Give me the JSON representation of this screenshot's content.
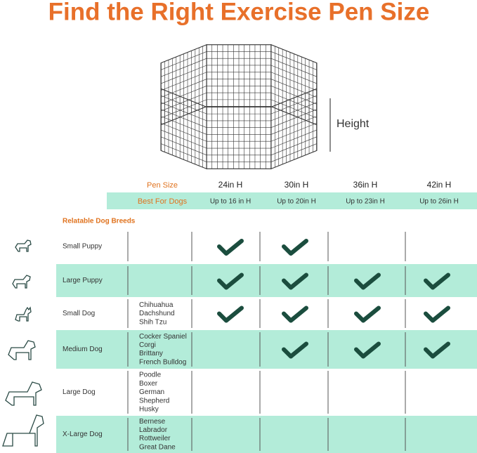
{
  "title": "Find the Right Exercise Pen Size",
  "image_label": "Height",
  "table": {
    "header": {
      "label": "Pen Size",
      "columns": [
        "24in H",
        "30in H",
        "36in H",
        "42in H"
      ]
    },
    "best_for": {
      "label": "Best For Dogs",
      "values": [
        "Up to 16 in H",
        "Up to 20in H",
        "Up to 23in H",
        "Up to 26in H"
      ]
    },
    "section_label": "Relatable Dog Breeds",
    "rows": [
      {
        "size": "Small Puppy",
        "breeds": [],
        "fits": [
          true,
          true,
          false,
          false
        ]
      },
      {
        "size": "Large Puppy",
        "breeds": [],
        "fits": [
          true,
          true,
          true,
          true
        ]
      },
      {
        "size": "Small Dog",
        "breeds": [
          "Chihuahua",
          "Dachshund",
          "Shih Tzu"
        ],
        "fits": [
          true,
          true,
          true,
          true
        ]
      },
      {
        "size": "Medium Dog",
        "breeds": [
          "Cocker Spaniel",
          "Corgi",
          "Brittany",
          "French Bulldog"
        ],
        "fits": [
          false,
          true,
          true,
          true
        ]
      },
      {
        "size": "Large Dog",
        "breeds": [
          "Poodle",
          "Boxer",
          "German",
          "Shepherd",
          "Husky"
        ],
        "fits": [
          false,
          false,
          false,
          false
        ]
      },
      {
        "size": "X-Large Dog",
        "breeds": [
          "Bernese",
          "Labrador",
          "Rottweiler",
          "Great Dane"
        ],
        "fits": [
          false,
          false,
          false,
          false
        ]
      }
    ]
  }
}
